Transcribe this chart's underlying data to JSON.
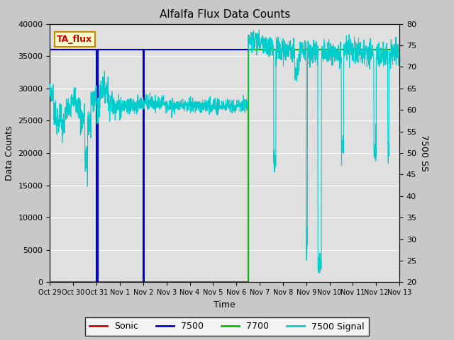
{
  "title": "Alfalfa Flux Data Counts",
  "xlabel": "Time",
  "ylabel_left": "Data Counts",
  "ylabel_right": "7500 SS",
  "annotation": "TA_flux",
  "ylim_left": [
    0,
    40000
  ],
  "ylim_right": [
    20,
    80
  ],
  "bg_color": "#c8c8c8",
  "plot_bg_color": "#e0e0e0",
  "sonic_color": "#dd0000",
  "x7500_color": "#0000cc",
  "x7700_color": "#00bb00",
  "signal_color": "#00cccc",
  "tick_labels": [
    "Oct 29",
    "Oct 30",
    "Oct 31",
    "Nov 1",
    "Nov 2",
    "Nov 3",
    "Nov 4",
    "Nov 5",
    "Nov 6",
    "Nov 7",
    "Nov 8",
    "Nov 9",
    "Nov 10",
    "Nov 11",
    "Nov 12",
    "Nov 13"
  ],
  "left_yticks": [
    0,
    5000,
    10000,
    15000,
    20000,
    25000,
    30000,
    35000,
    40000
  ],
  "right_yticks": [
    20,
    25,
    30,
    35,
    40,
    45,
    50,
    55,
    60,
    65,
    70,
    75,
    80
  ]
}
